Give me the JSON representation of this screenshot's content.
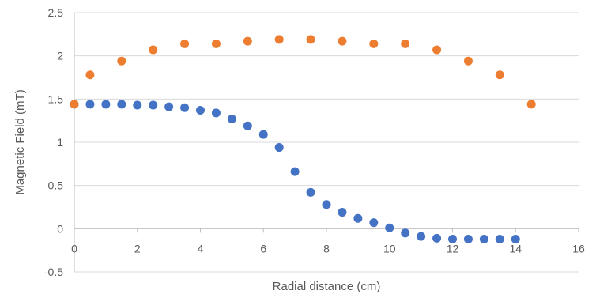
{
  "chart_data": {
    "type": "scatter",
    "title": "",
    "xlabel": "Radial distance (cm)",
    "ylabel": "Magnetic Field (mT)",
    "xlim": [
      0,
      16
    ],
    "ylim": [
      -0.5,
      2.5
    ],
    "x_ticks": [
      "0",
      "2",
      "4",
      "6",
      "8",
      "10",
      "12",
      "14",
      "16"
    ],
    "y_ticks": [
      "-0.5",
      "0",
      "0.5",
      "1",
      "1.5",
      "2",
      "2.5"
    ],
    "grid": "horizontal",
    "legend": "none",
    "series": [
      {
        "color": "#4472C4",
        "points": [
          [
            0,
            1.44
          ],
          [
            0.5,
            1.44
          ],
          [
            1,
            1.44
          ],
          [
            1.5,
            1.44
          ],
          [
            2,
            1.43
          ],
          [
            2.5,
            1.43
          ],
          [
            3,
            1.41
          ],
          [
            3.5,
            1.4
          ],
          [
            4,
            1.37
          ],
          [
            4.5,
            1.34
          ],
          [
            5,
            1.27
          ],
          [
            5.5,
            1.19
          ],
          [
            6,
            1.09
          ],
          [
            6.5,
            0.94
          ],
          [
            7,
            0.66
          ],
          [
            7.5,
            0.42
          ],
          [
            8,
            0.28
          ],
          [
            8.5,
            0.19
          ],
          [
            9,
            0.12
          ],
          [
            9.5,
            0.07
          ],
          [
            10,
            0.01
          ],
          [
            10.5,
            -0.05
          ],
          [
            11,
            -0.09
          ],
          [
            11.5,
            -0.11
          ],
          [
            12,
            -0.12
          ],
          [
            12.5,
            -0.12
          ],
          [
            13,
            -0.12
          ],
          [
            13.5,
            -0.12
          ],
          [
            14,
            -0.12
          ]
        ]
      },
      {
        "color": "#ED7D31",
        "points": [
          [
            0,
            1.44
          ],
          [
            0.5,
            1.78
          ],
          [
            1.5,
            1.94
          ],
          [
            2.5,
            2.07
          ],
          [
            3.5,
            2.14
          ],
          [
            4.5,
            2.14
          ],
          [
            5.5,
            2.17
          ],
          [
            6.5,
            2.19
          ],
          [
            7.5,
            2.19
          ],
          [
            8.5,
            2.17
          ],
          [
            9.5,
            2.14
          ],
          [
            10.5,
            2.14
          ],
          [
            11.5,
            2.07
          ],
          [
            12.5,
            1.94
          ],
          [
            13.5,
            1.78
          ],
          [
            14.5,
            1.44
          ]
        ]
      }
    ]
  }
}
